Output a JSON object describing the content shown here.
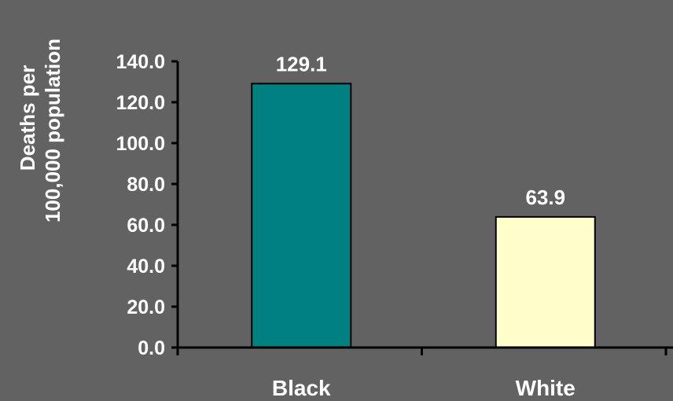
{
  "chart_data": {
    "type": "bar",
    "categories": [
      "Black",
      "White"
    ],
    "values": [
      129.1,
      63.9
    ],
    "value_labels": [
      "129.1",
      "63.9"
    ],
    "colors": [
      "#008080",
      "#ffffcc"
    ],
    "ylabel_lines": [
      "Deaths per",
      "100,000 population"
    ],
    "ylim": [
      0,
      140
    ],
    "yticks": [
      0,
      20,
      40,
      60,
      80,
      100,
      120,
      140
    ],
    "ytick_labels": [
      "0.0",
      "20.0",
      "40.0",
      "60.0",
      "80.0",
      "100.0",
      "120.0",
      "140.0"
    ],
    "grid": false,
    "legend": false
  },
  "colors": {
    "background": "#626262",
    "axis": "#000000",
    "text": "#ffffff",
    "bar_outline": "#000000"
  }
}
